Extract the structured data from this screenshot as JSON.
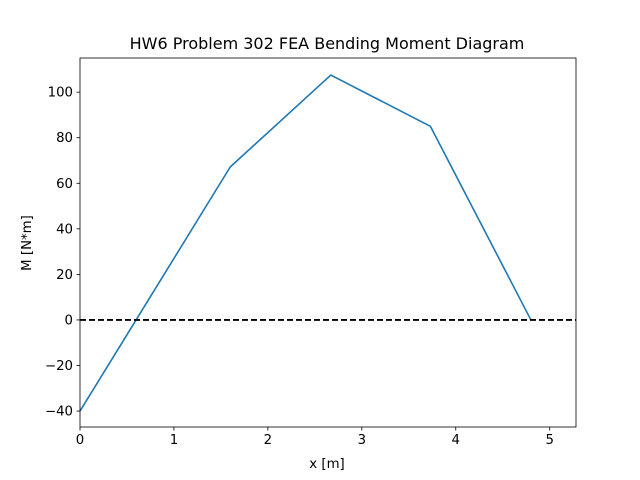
{
  "chart_data": {
    "type": "line",
    "title": "HW6 Problem 302 FEA Bending Moment Diagram",
    "xlabel": "x [m]",
    "ylabel": "M [N*m]",
    "xlim": [
      0,
      5.28
    ],
    "ylim": [
      -47,
      115
    ],
    "x_ticks": [
      0,
      1,
      2,
      3,
      4,
      5
    ],
    "x_tick_labels": [
      "0",
      "1",
      "2",
      "3",
      "4",
      "5"
    ],
    "y_ticks": [
      -40,
      -20,
      0,
      20,
      40,
      60,
      80,
      100
    ],
    "y_tick_labels": [
      "−40",
      "−20",
      "0",
      "20",
      "40",
      "60",
      "80",
      "100"
    ],
    "grid": false,
    "series": [
      {
        "color": "#1f77b4",
        "style": "solid",
        "x": [
          0,
          1.6,
          2.67,
          3.73,
          4.8
        ],
        "y": [
          -40,
          67.2,
          107.5,
          85.0,
          0
        ]
      },
      {
        "color": "#000000",
        "style": "dashed",
        "x": [
          0,
          5.28
        ],
        "y": [
          0,
          0
        ]
      }
    ]
  }
}
